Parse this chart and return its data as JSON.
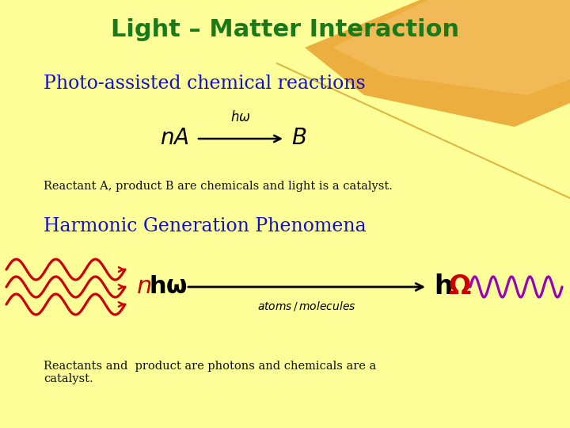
{
  "title": "Light – Matter Interaction",
  "title_color": "#1a7a1a",
  "bg_color": "#ffff99",
  "subtitle1": "Photo-assisted chemical reactions",
  "subtitle1_color": "#1111cc",
  "caption1": "Reactant A, product B are chemicals and light is a catalyst.",
  "caption1_color": "#111111",
  "subtitle2": "Harmonic Generation Phenomena",
  "subtitle2_color": "#1111cc",
  "caption2": "Reactants and  product are photons and chemicals are a\ncatalyst.",
  "caption2_color": "#111111",
  "wave_color": "#cc0000",
  "highfreq_wave_color": "#9900bb",
  "orange_band1": "#e8a030",
  "orange_band2": "#f5c060"
}
